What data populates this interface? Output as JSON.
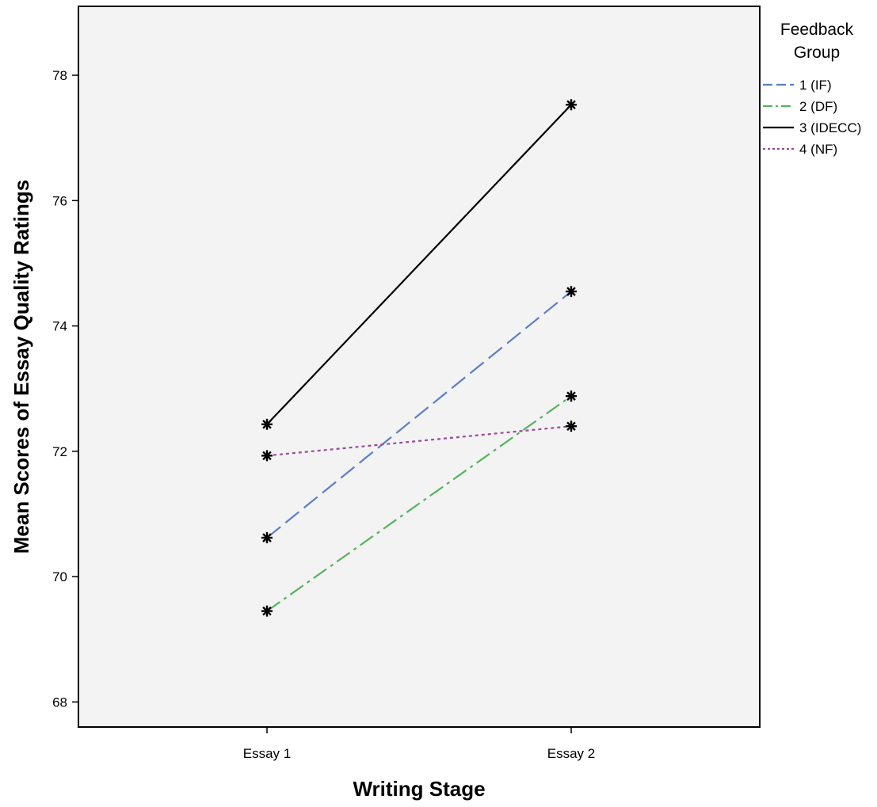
{
  "chart_data": {
    "type": "line",
    "title": "",
    "xlabel": "Writing Stage",
    "ylabel": "Mean Scores of Essay Quality Ratings",
    "categories": [
      "Essay 1",
      "Essay 2"
    ],
    "ylim": [
      67.6,
      79.1
    ],
    "yticks": [
      68,
      70,
      72,
      74,
      76,
      78
    ],
    "grid": false,
    "legend_title": "Feedback Group",
    "legend_position": "right",
    "plot_background": "#f3f3f3",
    "marker": "asterisk",
    "series": [
      {
        "name": "1 (IF)",
        "values": [
          70.62,
          74.55
        ],
        "color": "#5b7ec9",
        "dash": "long-dash"
      },
      {
        "name": "2 (DF)",
        "values": [
          69.45,
          72.88
        ],
        "color": "#55b35a",
        "dash": "dash-dot"
      },
      {
        "name": "3 (IDECC)",
        "values": [
          72.43,
          77.53
        ],
        "color": "#000000",
        "dash": "solid"
      },
      {
        "name": "4 (NF)",
        "values": [
          71.93,
          72.4
        ],
        "color": "#9c4a9c",
        "dash": "dotted"
      }
    ]
  }
}
